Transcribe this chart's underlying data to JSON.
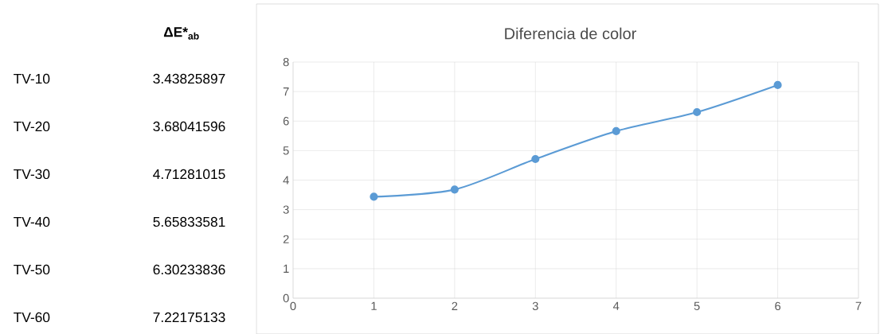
{
  "chart_data": {
    "type": "line",
    "title": "Diferencia de color",
    "x": [
      1,
      2,
      3,
      4,
      5,
      6
    ],
    "values": [
      3.43825897,
      3.68041596,
      4.71281015,
      5.65833581,
      6.30233836,
      7.22175133
    ],
    "color": "#5b9bd5",
    "marker": "circle",
    "grid": true,
    "xlim": [
      0,
      7
    ],
    "xticks": [
      0,
      1,
      2,
      3,
      4,
      5,
      6,
      7
    ],
    "ylim": [
      0,
      8
    ],
    "yticks": [
      0,
      1,
      2,
      3,
      4,
      5,
      6,
      7,
      8
    ],
    "annotations": [
      "ΔE*$_{ab}$",
      "TV-10",
      "3.43825897",
      "TV-20",
      "3.68041596",
      "TV-30",
      "4.71281015",
      "TV-40",
      "5.65833581",
      "TV-50",
      "6.30233836",
      "TV-60",
      "7.22175133"
    ]
  }
}
